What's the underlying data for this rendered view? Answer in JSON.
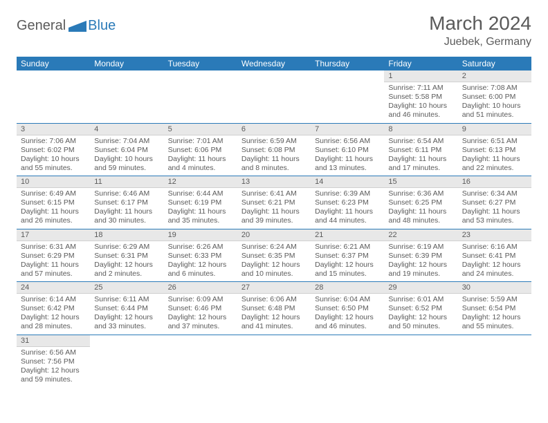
{
  "logo": {
    "part1": "General",
    "part2": "Blue"
  },
  "title": "March 2024",
  "location": "Juebek, Germany",
  "colors": {
    "header_bg": "#2a7ab8",
    "header_text": "#ffffff",
    "daynum_bg": "#e8e8e8",
    "border": "#2a7ab8",
    "text": "#5a5a5a",
    "page_bg": "#ffffff"
  },
  "typography": {
    "title_fontsize": 28,
    "subtitle_fontsize": 16,
    "header_fontsize": 12,
    "cell_fontsize": 10.5
  },
  "weekdays": [
    "Sunday",
    "Monday",
    "Tuesday",
    "Wednesday",
    "Thursday",
    "Friday",
    "Saturday"
  ],
  "weeks": [
    [
      null,
      null,
      null,
      null,
      null,
      {
        "n": "1",
        "sr": "Sunrise: 7:11 AM",
        "ss": "Sunset: 5:58 PM",
        "d1": "Daylight: 10 hours",
        "d2": "and 46 minutes."
      },
      {
        "n": "2",
        "sr": "Sunrise: 7:08 AM",
        "ss": "Sunset: 6:00 PM",
        "d1": "Daylight: 10 hours",
        "d2": "and 51 minutes."
      }
    ],
    [
      {
        "n": "3",
        "sr": "Sunrise: 7:06 AM",
        "ss": "Sunset: 6:02 PM",
        "d1": "Daylight: 10 hours",
        "d2": "and 55 minutes."
      },
      {
        "n": "4",
        "sr": "Sunrise: 7:04 AM",
        "ss": "Sunset: 6:04 PM",
        "d1": "Daylight: 10 hours",
        "d2": "and 59 minutes."
      },
      {
        "n": "5",
        "sr": "Sunrise: 7:01 AM",
        "ss": "Sunset: 6:06 PM",
        "d1": "Daylight: 11 hours",
        "d2": "and 4 minutes."
      },
      {
        "n": "6",
        "sr": "Sunrise: 6:59 AM",
        "ss": "Sunset: 6:08 PM",
        "d1": "Daylight: 11 hours",
        "d2": "and 8 minutes."
      },
      {
        "n": "7",
        "sr": "Sunrise: 6:56 AM",
        "ss": "Sunset: 6:10 PM",
        "d1": "Daylight: 11 hours",
        "d2": "and 13 minutes."
      },
      {
        "n": "8",
        "sr": "Sunrise: 6:54 AM",
        "ss": "Sunset: 6:11 PM",
        "d1": "Daylight: 11 hours",
        "d2": "and 17 minutes."
      },
      {
        "n": "9",
        "sr": "Sunrise: 6:51 AM",
        "ss": "Sunset: 6:13 PM",
        "d1": "Daylight: 11 hours",
        "d2": "and 22 minutes."
      }
    ],
    [
      {
        "n": "10",
        "sr": "Sunrise: 6:49 AM",
        "ss": "Sunset: 6:15 PM",
        "d1": "Daylight: 11 hours",
        "d2": "and 26 minutes."
      },
      {
        "n": "11",
        "sr": "Sunrise: 6:46 AM",
        "ss": "Sunset: 6:17 PM",
        "d1": "Daylight: 11 hours",
        "d2": "and 30 minutes."
      },
      {
        "n": "12",
        "sr": "Sunrise: 6:44 AM",
        "ss": "Sunset: 6:19 PM",
        "d1": "Daylight: 11 hours",
        "d2": "and 35 minutes."
      },
      {
        "n": "13",
        "sr": "Sunrise: 6:41 AM",
        "ss": "Sunset: 6:21 PM",
        "d1": "Daylight: 11 hours",
        "d2": "and 39 minutes."
      },
      {
        "n": "14",
        "sr": "Sunrise: 6:39 AM",
        "ss": "Sunset: 6:23 PM",
        "d1": "Daylight: 11 hours",
        "d2": "and 44 minutes."
      },
      {
        "n": "15",
        "sr": "Sunrise: 6:36 AM",
        "ss": "Sunset: 6:25 PM",
        "d1": "Daylight: 11 hours",
        "d2": "and 48 minutes."
      },
      {
        "n": "16",
        "sr": "Sunrise: 6:34 AM",
        "ss": "Sunset: 6:27 PM",
        "d1": "Daylight: 11 hours",
        "d2": "and 53 minutes."
      }
    ],
    [
      {
        "n": "17",
        "sr": "Sunrise: 6:31 AM",
        "ss": "Sunset: 6:29 PM",
        "d1": "Daylight: 11 hours",
        "d2": "and 57 minutes."
      },
      {
        "n": "18",
        "sr": "Sunrise: 6:29 AM",
        "ss": "Sunset: 6:31 PM",
        "d1": "Daylight: 12 hours",
        "d2": "and 2 minutes."
      },
      {
        "n": "19",
        "sr": "Sunrise: 6:26 AM",
        "ss": "Sunset: 6:33 PM",
        "d1": "Daylight: 12 hours",
        "d2": "and 6 minutes."
      },
      {
        "n": "20",
        "sr": "Sunrise: 6:24 AM",
        "ss": "Sunset: 6:35 PM",
        "d1": "Daylight: 12 hours",
        "d2": "and 10 minutes."
      },
      {
        "n": "21",
        "sr": "Sunrise: 6:21 AM",
        "ss": "Sunset: 6:37 PM",
        "d1": "Daylight: 12 hours",
        "d2": "and 15 minutes."
      },
      {
        "n": "22",
        "sr": "Sunrise: 6:19 AM",
        "ss": "Sunset: 6:39 PM",
        "d1": "Daylight: 12 hours",
        "d2": "and 19 minutes."
      },
      {
        "n": "23",
        "sr": "Sunrise: 6:16 AM",
        "ss": "Sunset: 6:41 PM",
        "d1": "Daylight: 12 hours",
        "d2": "and 24 minutes."
      }
    ],
    [
      {
        "n": "24",
        "sr": "Sunrise: 6:14 AM",
        "ss": "Sunset: 6:42 PM",
        "d1": "Daylight: 12 hours",
        "d2": "and 28 minutes."
      },
      {
        "n": "25",
        "sr": "Sunrise: 6:11 AM",
        "ss": "Sunset: 6:44 PM",
        "d1": "Daylight: 12 hours",
        "d2": "and 33 minutes."
      },
      {
        "n": "26",
        "sr": "Sunrise: 6:09 AM",
        "ss": "Sunset: 6:46 PM",
        "d1": "Daylight: 12 hours",
        "d2": "and 37 minutes."
      },
      {
        "n": "27",
        "sr": "Sunrise: 6:06 AM",
        "ss": "Sunset: 6:48 PM",
        "d1": "Daylight: 12 hours",
        "d2": "and 41 minutes."
      },
      {
        "n": "28",
        "sr": "Sunrise: 6:04 AM",
        "ss": "Sunset: 6:50 PM",
        "d1": "Daylight: 12 hours",
        "d2": "and 46 minutes."
      },
      {
        "n": "29",
        "sr": "Sunrise: 6:01 AM",
        "ss": "Sunset: 6:52 PM",
        "d1": "Daylight: 12 hours",
        "d2": "and 50 minutes."
      },
      {
        "n": "30",
        "sr": "Sunrise: 5:59 AM",
        "ss": "Sunset: 6:54 PM",
        "d1": "Daylight: 12 hours",
        "d2": "and 55 minutes."
      }
    ],
    [
      {
        "n": "31",
        "sr": "Sunrise: 6:56 AM",
        "ss": "Sunset: 7:56 PM",
        "d1": "Daylight: 12 hours",
        "d2": "and 59 minutes."
      },
      null,
      null,
      null,
      null,
      null,
      null
    ]
  ]
}
